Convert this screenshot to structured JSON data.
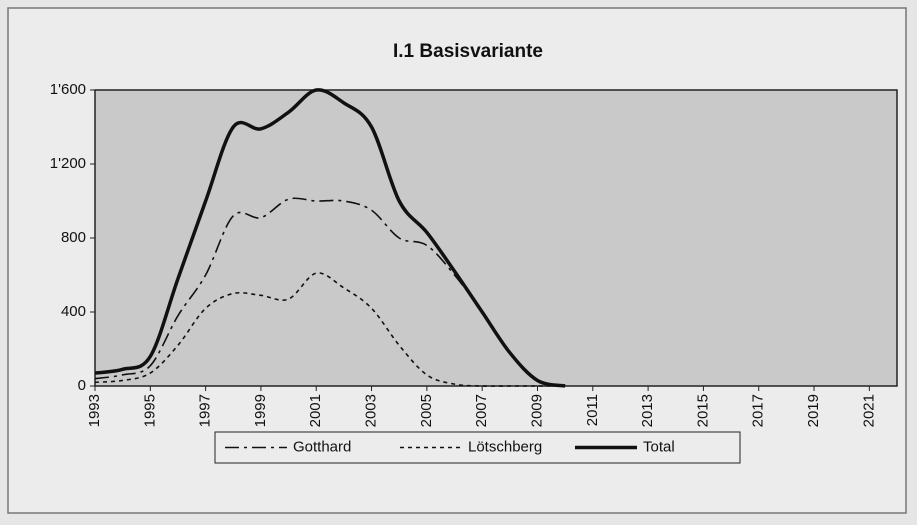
{
  "chart_data": {
    "type": "line",
    "title": "I.1 Basisvariante",
    "x": [
      1993,
      1994,
      1995,
      1996,
      1997,
      1998,
      1999,
      2000,
      2001,
      2002,
      2003,
      2004,
      2005,
      2006,
      2007,
      2008,
      2009,
      2010
    ],
    "series": [
      {
        "name": "Gotthard",
        "color": "#111111",
        "style": "dashdot",
        "values": [
          40,
          60,
          110,
          380,
          600,
          920,
          910,
          1010,
          1000,
          1000,
          950,
          800,
          760,
          600,
          400,
          180,
          30,
          0
        ]
      },
      {
        "name": "Lötschberg",
        "color": "#111111",
        "style": "dotted",
        "values": [
          20,
          30,
          70,
          220,
          420,
          500,
          490,
          470,
          610,
          530,
          420,
          220,
          60,
          10,
          0,
          0,
          0,
          0
        ]
      },
      {
        "name": "Total",
        "color": "#111111",
        "style": "bold",
        "values": [
          70,
          90,
          160,
          580,
          1000,
          1400,
          1390,
          1480,
          1600,
          1530,
          1400,
          1000,
          830,
          620,
          400,
          180,
          30,
          0
        ]
      }
    ],
    "xlim": [
      1993,
      2022
    ],
    "xticks": [
      1993,
      1995,
      1997,
      1999,
      2001,
      2003,
      2005,
      2007,
      2009,
      2011,
      2013,
      2015,
      2017,
      2019,
      2021
    ],
    "ylim": [
      0,
      1600
    ],
    "yticks": [
      0,
      400,
      800,
      {
        "value": 1200,
        "label": "1'200"
      },
      {
        "value": 1600,
        "label": "1'600"
      }
    ],
    "legend": "bottom"
  }
}
